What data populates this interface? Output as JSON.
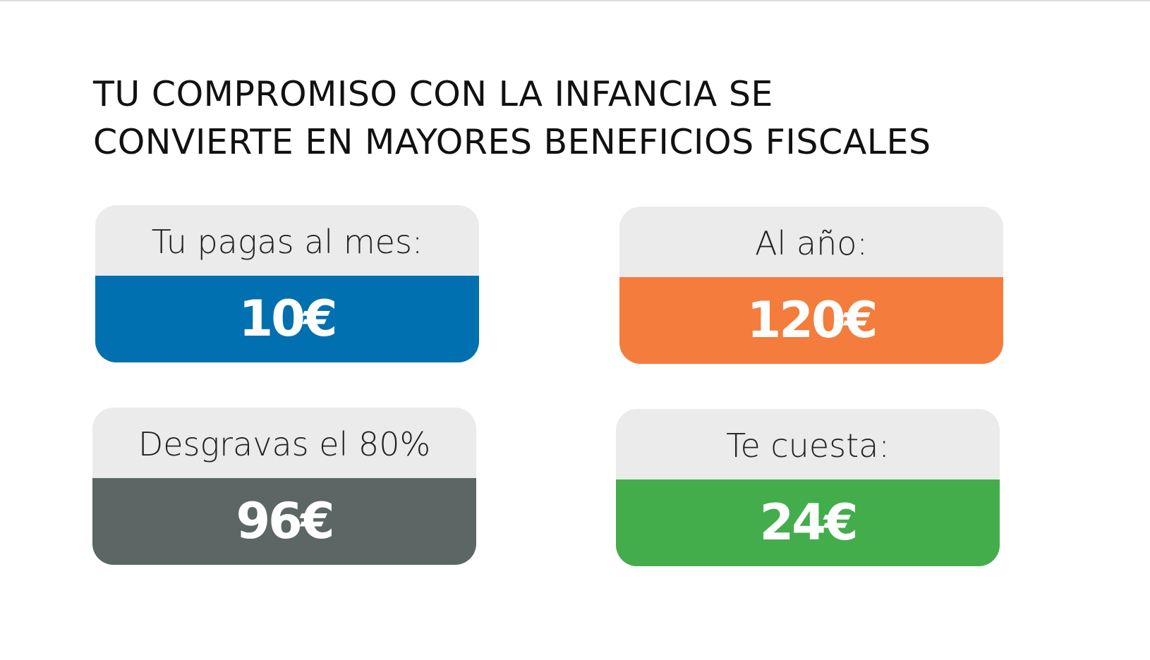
{
  "title": {
    "lines": [
      "TU COMPROMISO CON LA INFANCIA SE",
      "CONVIERTE EN MAYORES BENEFICIOS FISCALES"
    ]
  },
  "cards": [
    {
      "label": "Tu pagas al mes:",
      "value": "10€",
      "color": "#0070b0"
    },
    {
      "label": "Al año:",
      "value": "120€",
      "color": "#f47c3c"
    },
    {
      "label": "Desgravas el 80%",
      "value": "96€",
      "color": "#5c6664"
    },
    {
      "label": "Te cuesta:",
      "value": "24€",
      "color": "#43ad4c"
    }
  ]
}
